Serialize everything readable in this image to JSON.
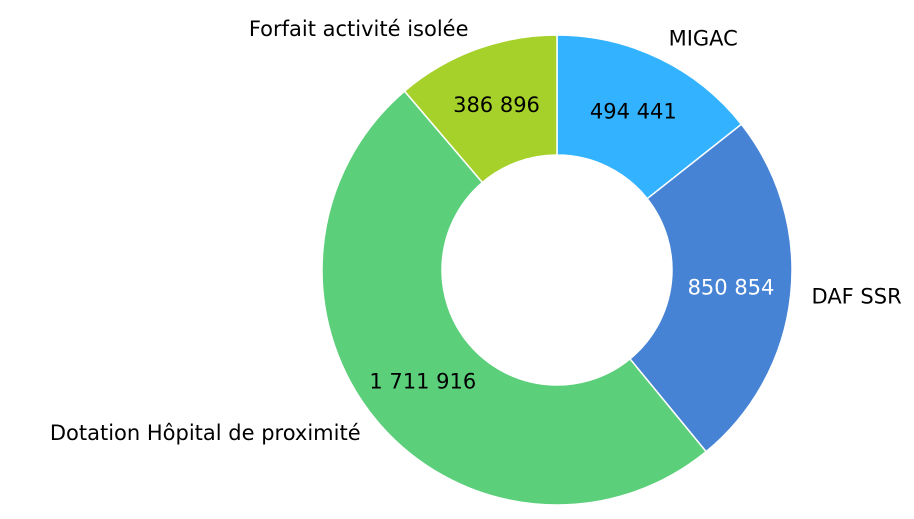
{
  "chart_data": {
    "type": "donut",
    "categories": [
      "MIGAC",
      "DAF SSR",
      "Dotation Hôpital de proximité",
      "Forfait activité isolée"
    ],
    "values": [
      494441,
      850854,
      1711916,
      386896
    ],
    "value_labels": [
      "494 441",
      "850 854",
      "1 711 916",
      "386 896"
    ],
    "colors": [
      "#33b3ff",
      "#4783d4",
      "#5ccf7a",
      "#a6d12a"
    ],
    "value_label_colors": [
      "#000000",
      "#ffffff",
      "#000000",
      "#000000"
    ]
  }
}
